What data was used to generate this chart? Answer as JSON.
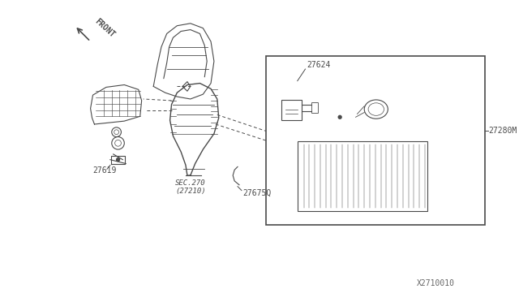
{
  "bg_color": "#ffffff",
  "line_color": "#4a4a4a",
  "title_bottom_right": "X2710010",
  "label_front": "FRONT",
  "label_27624": "27624",
  "label_27280M": "27280M",
  "label_27675Q": "27675Q",
  "label_27619": "27619",
  "label_sec270": "SEC.270\n(27210)",
  "fig_width": 6.4,
  "fig_height": 3.72,
  "dpi": 100
}
